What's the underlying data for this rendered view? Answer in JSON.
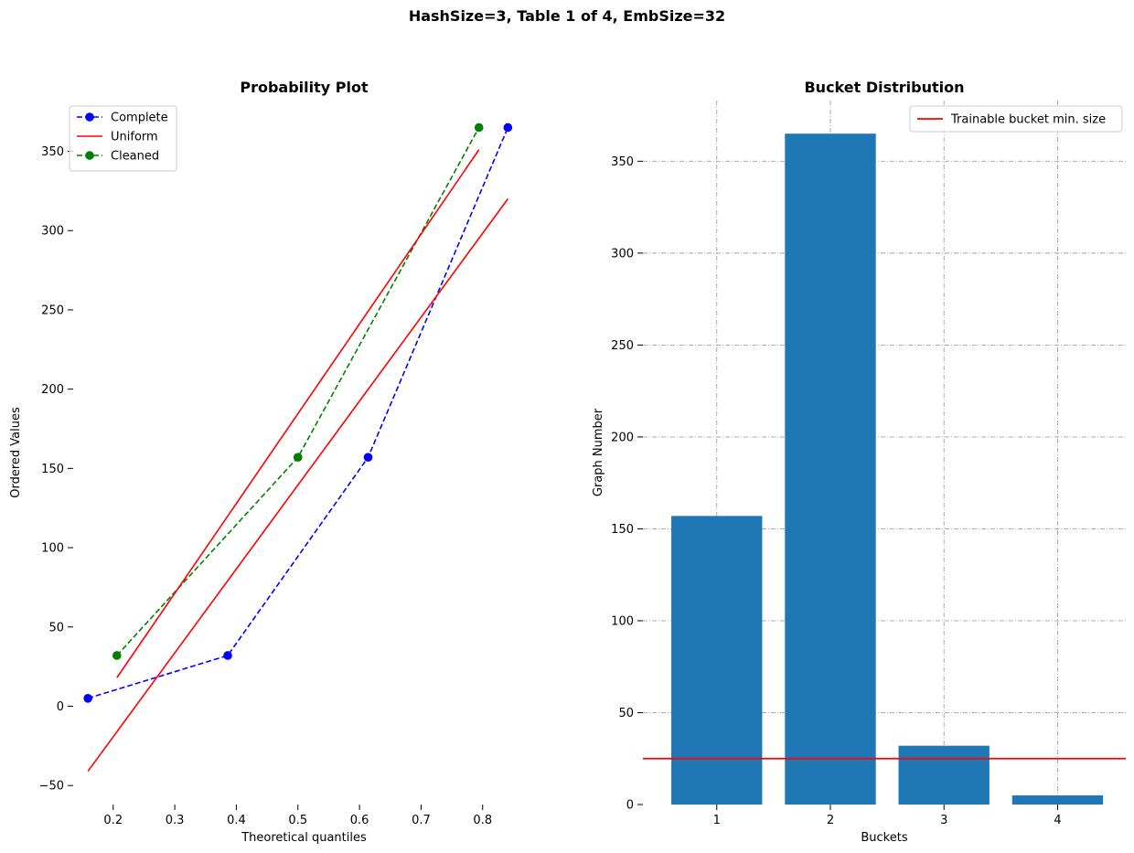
{
  "figure": {
    "title": "HashSize=3, Table 1 of 4, EmbSize=32"
  },
  "chart_data": [
    {
      "type": "line",
      "title": "Probability Plot",
      "xlabel": "Theoretical quantiles",
      "ylabel": "Ordered Values",
      "xlim": [
        0.135,
        0.885
      ],
      "ylim": [
        -62,
        382
      ],
      "xticks": [
        0.2,
        0.3,
        0.4,
        0.5,
        0.6,
        0.7,
        0.8
      ],
      "yticks": [
        -50,
        0,
        50,
        100,
        150,
        200,
        250,
        300,
        350
      ],
      "xtick_labels": [
        "0.2",
        "0.3",
        "0.4",
        "0.5",
        "0.6",
        "0.7",
        "0.8"
      ],
      "ytick_labels": [
        "−50",
        "0",
        "50",
        "100",
        "150",
        "200",
        "250",
        "300",
        "350"
      ],
      "grid": false,
      "legend": "top-left",
      "series": [
        {
          "name": "Complete",
          "style": "dashed-markers",
          "color": "#0000ff",
          "x": [
            0.159,
            0.386,
            0.614,
            0.841
          ],
          "y": [
            5,
            32,
            157,
            365
          ]
        },
        {
          "name": "Uniform",
          "style": "solid",
          "color": "#ff0000",
          "x": [
            0.159,
            0.841
          ],
          "y": [
            -41,
            320
          ]
        },
        {
          "name": "Cleaned",
          "style": "dashed-markers",
          "color": "#008000",
          "x": [
            0.206,
            0.5,
            0.794
          ],
          "y": [
            32,
            157,
            365
          ]
        },
        {
          "style": "solid",
          "color": "#ff0000",
          "x": [
            0.206,
            0.794
          ],
          "y": [
            18,
            351
          ]
        }
      ]
    },
    {
      "type": "bar",
      "title": "Bucket Distribution",
      "xlabel": "Buckets",
      "ylabel": "Graph Number",
      "categories": [
        "1",
        "2",
        "3",
        "4"
      ],
      "values": [
        157,
        365,
        32,
        5
      ],
      "xlim": [
        0.35,
        4.6
      ],
      "ylim": [
        0,
        383
      ],
      "yticks": [
        0,
        50,
        100,
        150,
        200,
        250,
        300,
        350
      ],
      "ytick_labels": [
        "0",
        "50",
        "100",
        "150",
        "200",
        "250",
        "300",
        "350"
      ],
      "bar_color": "#1f77b4",
      "grid": true,
      "legend": "top-right",
      "hline": {
        "name": "Trainable bucket min. size",
        "y": 25,
        "color": "#ff0000"
      }
    }
  ]
}
